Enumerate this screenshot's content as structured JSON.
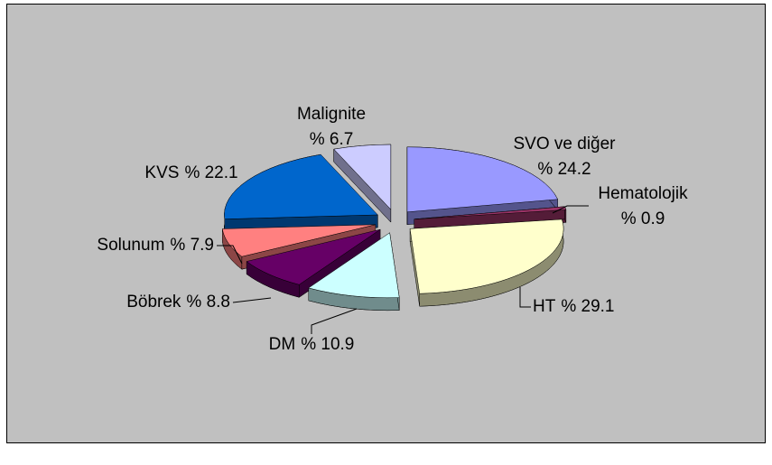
{
  "chart_data": {
    "type": "pie",
    "categories": [
      "SVO ve diğer",
      "Hematolojik",
      "HT",
      "DM",
      "Böbrek",
      "Solunum",
      "KVS",
      "Malignite"
    ],
    "values": [
      24.2,
      0.9,
      29.1,
      10.9,
      8.8,
      7.9,
      22.1,
      6.7
    ],
    "value_labels": [
      "% 24.2",
      "% 0.9",
      "% 29.1",
      "% 10.9",
      "% 8.8",
      "% 7.9",
      "% 22.1",
      "% 6.7"
    ],
    "colors": [
      "#9999ff",
      "#993366",
      "#ffffcc",
      "#ccffff",
      "#660066",
      "#ff8080",
      "#0066cc",
      "#ccccff"
    ]
  }
}
